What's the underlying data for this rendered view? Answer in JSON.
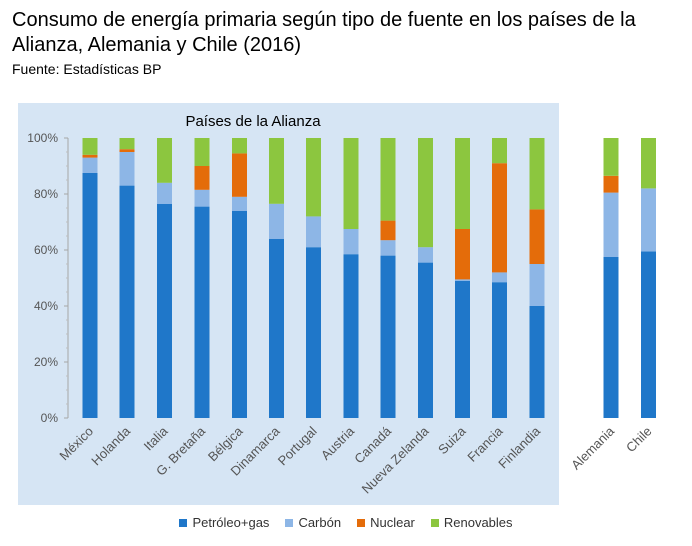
{
  "title": "Consumo de energía primaria según tipo de fuente en los países de la Alianza, Alemania y Chile (2016)",
  "source": "Fuente: Estadísticas BP",
  "group_label": "Países de la Alianza",
  "colors": {
    "petroleo": "#1F77C9",
    "carbon": "#8DB6E6",
    "nuclear": "#E46C0A",
    "renovables": "#8CC63F",
    "panel": "#D6E5F4"
  },
  "chart_data": {
    "type": "bar",
    "stacked": true,
    "title": "Consumo de energía primaria según tipo de fuente en los países de la Alianza, Alemania y Chile (2016)",
    "yunit": "%",
    "ylim": [
      0,
      100
    ],
    "yticks": [
      "0%",
      "20%",
      "40%",
      "60%",
      "80%",
      "100%"
    ],
    "categories": [
      "México",
      "Holanda",
      "Italia",
      "G. Bretaña",
      "Bélgica",
      "Dinamarca",
      "Portugal",
      "Austria",
      "Canadá",
      "Nueva Zelanda",
      "Suiza",
      "Francia",
      "Finlandia",
      "Alemania",
      "Chile"
    ],
    "series": [
      {
        "name": "Petróleo+gas",
        "key": "petroleo",
        "values": [
          87.5,
          83,
          76.5,
          75.5,
          74,
          64,
          61,
          58.5,
          58,
          55.5,
          49,
          48.5,
          40,
          57.5,
          59.5
        ]
      },
      {
        "name": "Carbón",
        "key": "carbon",
        "values": [
          5.5,
          12,
          7.5,
          6,
          5,
          12.5,
          11,
          9,
          5.5,
          5.5,
          0.5,
          3.5,
          15,
          23,
          22.5
        ]
      },
      {
        "name": "Nuclear",
        "key": "nuclear",
        "values": [
          1,
          1,
          0,
          8.5,
          15.5,
          0,
          0,
          0,
          7,
          0,
          18,
          39,
          19.5,
          6,
          0
        ]
      },
      {
        "name": "Renovables",
        "key": "renovables",
        "values": [
          6,
          4,
          16,
          10,
          5.5,
          23.5,
          28,
          32.5,
          29.5,
          39,
          32.5,
          9,
          25.5,
          13.5,
          18
        ]
      }
    ],
    "legend_position": "bottom",
    "grid": false
  }
}
